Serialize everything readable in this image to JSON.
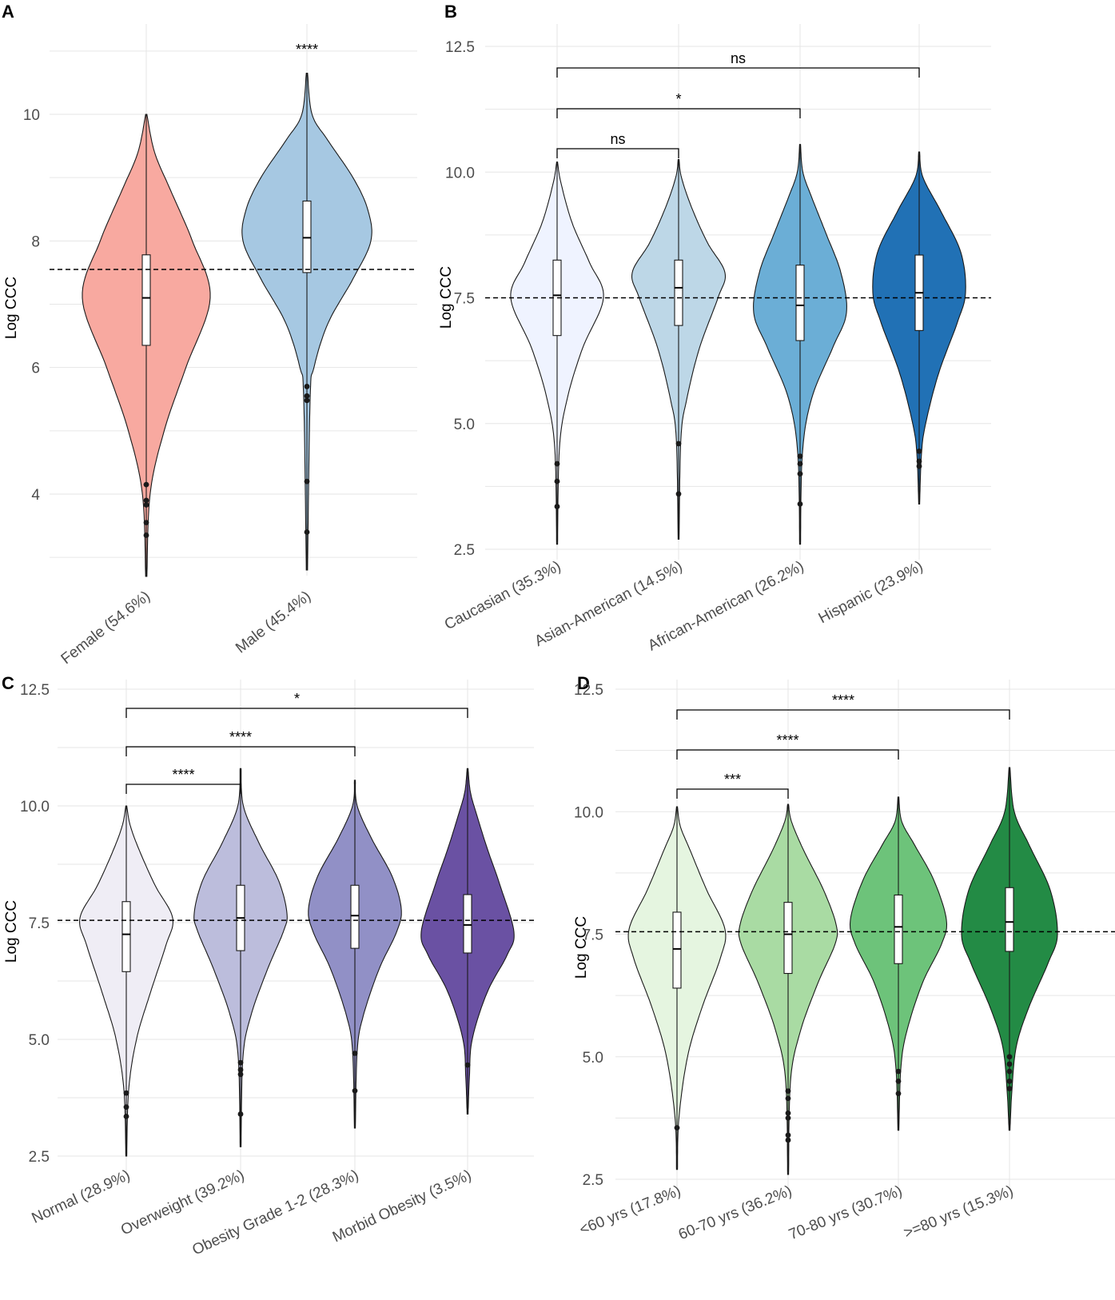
{
  "chart_data": [
    {
      "panel": "A",
      "type": "violin",
      "ylabel": "Log CCC",
      "ylim": [
        2.8,
        11.0
      ],
      "yticks": [
        4,
        6,
        8,
        10
      ],
      "yminor": [
        3,
        5,
        7,
        9,
        11
      ],
      "yticklabels": [
        "4",
        "6",
        "8",
        "10"
      ],
      "reference_line": 7.55,
      "categories": [
        "Female (54.6%)",
        "Male (45.4%)"
      ],
      "colors": [
        "#f8a9a0",
        "#a6c8e2"
      ],
      "groups": [
        {
          "median": 7.1,
          "q1": 6.35,
          "q3": 7.78,
          "wlo": 4.2,
          "whi": 9.4,
          "min": 2.7,
          "max": 10.0,
          "outliers": [
            4.15,
            3.9,
            3.83,
            3.55,
            3.35
          ],
          "shape": [
            [
              2.7,
              0.01
            ],
            [
              4.0,
              0.06
            ],
            [
              5.0,
              0.28
            ],
            [
              6.0,
              0.62
            ],
            [
              7.1,
              1.0
            ],
            [
              8.0,
              0.72
            ],
            [
              8.8,
              0.38
            ],
            [
              9.4,
              0.13
            ],
            [
              10.0,
              0.01
            ]
          ]
        },
        {
          "median": 8.05,
          "q1": 7.5,
          "q3": 8.63,
          "wlo": 5.65,
          "whi": 10.0,
          "min": 2.8,
          "max": 10.65,
          "outliers": [
            5.7,
            5.55,
            5.48,
            4.2,
            3.4
          ],
          "shape": [
            [
              2.8,
              0.01
            ],
            [
              5.5,
              0.05
            ],
            [
              6.0,
              0.11
            ],
            [
              6.7,
              0.33
            ],
            [
              7.4,
              0.72
            ],
            [
              8.0,
              1.0
            ],
            [
              8.5,
              0.95
            ],
            [
              9.0,
              0.72
            ],
            [
              9.6,
              0.32
            ],
            [
              10.0,
              0.08
            ],
            [
              10.65,
              0.01
            ]
          ]
        }
      ],
      "significance": [
        {
          "text": "****",
          "from": 1,
          "to": 1
        }
      ]
    },
    {
      "panel": "B",
      "type": "violin",
      "ylabel": "Log CCC",
      "ylim": [
        2.0,
        13.0
      ],
      "yticks": [
        2.5,
        5.0,
        7.5,
        10.0,
        12.5
      ],
      "yminor": [
        3.75,
        6.25,
        8.75,
        11.25
      ],
      "yticklabels": [
        "2.5",
        "5.0",
        "7.5",
        "10.0",
        "12.5"
      ],
      "reference_line": 7.5,
      "categories": [
        "Caucasian (35.3%)",
        "Asian-American (14.5%)",
        "African-American (26.2%)",
        "Hispanic (23.9%)"
      ],
      "colors": [
        "#eff3ff",
        "#bdd7e7",
        "#6baed6",
        "#2171b5"
      ],
      "groups": [
        {
          "median": 7.55,
          "q1": 6.75,
          "q3": 8.25,
          "wlo": 4.3,
          "whi": 9.8,
          "min": 2.6,
          "max": 10.2,
          "outliers": [
            4.2,
            3.85,
            3.35
          ],
          "shape": [
            [
              2.6,
              0.01
            ],
            [
              4.5,
              0.05
            ],
            [
              5.5,
              0.22
            ],
            [
              6.5,
              0.55
            ],
            [
              7.5,
              1.0
            ],
            [
              8.2,
              0.7
            ],
            [
              9.0,
              0.32
            ],
            [
              9.8,
              0.08
            ],
            [
              10.2,
              0.01
            ]
          ]
        },
        {
          "median": 7.7,
          "q1": 6.95,
          "q3": 8.25,
          "wlo": 4.7,
          "whi": 9.9,
          "min": 2.7,
          "max": 10.25,
          "outliers": [
            4.6,
            3.6
          ],
          "shape": [
            [
              2.7,
              0.01
            ],
            [
              4.7,
              0.05
            ],
            [
              5.5,
              0.18
            ],
            [
              6.5,
              0.45
            ],
            [
              7.5,
              0.85
            ],
            [
              8.0,
              1.0
            ],
            [
              8.6,
              0.62
            ],
            [
              9.3,
              0.28
            ],
            [
              9.9,
              0.06
            ],
            [
              10.25,
              0.01
            ]
          ]
        },
        {
          "median": 7.35,
          "q1": 6.65,
          "q3": 8.15,
          "wlo": 4.4,
          "whi": 10.0,
          "min": 2.6,
          "max": 10.55,
          "outliers": [
            4.35,
            4.2,
            4.0,
            3.4
          ],
          "shape": [
            [
              2.6,
              0.01
            ],
            [
              4.4,
              0.05
            ],
            [
              5.5,
              0.25
            ],
            [
              6.5,
              0.7
            ],
            [
              7.2,
              1.0
            ],
            [
              8.0,
              0.88
            ],
            [
              8.8,
              0.55
            ],
            [
              9.5,
              0.25
            ],
            [
              10.0,
              0.06
            ],
            [
              10.55,
              0.01
            ]
          ]
        },
        {
          "median": 7.6,
          "q1": 6.85,
          "q3": 8.35,
          "wlo": 4.4,
          "whi": 9.9,
          "min": 3.4,
          "max": 10.4,
          "outliers": [
            4.45,
            4.25,
            4.15
          ],
          "shape": [
            [
              3.4,
              0.01
            ],
            [
              4.4,
              0.05
            ],
            [
              5.0,
              0.14
            ],
            [
              6.0,
              0.42
            ],
            [
              7.0,
              0.82
            ],
            [
              7.6,
              1.0
            ],
            [
              8.4,
              0.9
            ],
            [
              9.2,
              0.48
            ],
            [
              9.9,
              0.08
            ],
            [
              10.4,
              0.01
            ]
          ]
        }
      ],
      "significance": [
        {
          "text": "ns",
          "from": 0,
          "to": 1
        },
        {
          "text": "*",
          "from": 0,
          "to": 2
        },
        {
          "text": "ns",
          "from": 0,
          "to": 3
        }
      ]
    },
    {
      "panel": "C",
      "type": "violin",
      "ylabel": "Log CCC",
      "ylim": [
        2.0,
        12.8
      ],
      "yticks": [
        2.5,
        5.0,
        7.5,
        10.0,
        12.5
      ],
      "yminor": [
        3.75,
        6.25,
        8.75,
        11.25
      ],
      "yticklabels": [
        "2.5",
        "5.0",
        "7.5",
        "10.0",
        "12.5"
      ],
      "reference_line": 7.55,
      "categories": [
        "Normal (28.9%)",
        "Overweight (39.2%)",
        "Obesity Grade 1-2 (28.3%)",
        "Morbid Obesity (3.5%)"
      ],
      "colors": [
        "#efedf5",
        "#bcbddc",
        "#9190c6",
        "#6a51a3"
      ],
      "groups": [
        {
          "median": 7.25,
          "q1": 6.45,
          "q3": 7.95,
          "wlo": 3.9,
          "whi": 9.6,
          "min": 2.5,
          "max": 10.0,
          "outliers": [
            3.85,
            3.55,
            3.35
          ],
          "shape": [
            [
              2.5,
              0.01
            ],
            [
              3.9,
              0.05
            ],
            [
              5.0,
              0.22
            ],
            [
              6.0,
              0.52
            ],
            [
              7.0,
              0.85
            ],
            [
              7.6,
              1.0
            ],
            [
              8.3,
              0.62
            ],
            [
              9.1,
              0.26
            ],
            [
              9.6,
              0.08
            ],
            [
              10.0,
              0.01
            ]
          ]
        },
        {
          "median": 7.6,
          "q1": 6.9,
          "q3": 8.3,
          "wlo": 4.6,
          "whi": 10.0,
          "min": 2.7,
          "max": 10.8,
          "outliers": [
            4.5,
            4.35,
            4.25,
            3.4
          ],
          "shape": [
            [
              2.7,
              0.01
            ],
            [
              4.6,
              0.05
            ],
            [
              5.5,
              0.22
            ],
            [
              6.5,
              0.58
            ],
            [
              7.3,
              0.92
            ],
            [
              7.7,
              1.0
            ],
            [
              8.4,
              0.82
            ],
            [
              9.2,
              0.4
            ],
            [
              10.0,
              0.06
            ],
            [
              10.8,
              0.01
            ]
          ]
        },
        {
          "median": 7.65,
          "q1": 6.95,
          "q3": 8.3,
          "wlo": 4.75,
          "whi": 10.0,
          "min": 3.1,
          "max": 10.55,
          "outliers": [
            4.7,
            3.9
          ],
          "shape": [
            [
              3.1,
              0.01
            ],
            [
              4.75,
              0.05
            ],
            [
              5.5,
              0.18
            ],
            [
              6.5,
              0.52
            ],
            [
              7.3,
              0.9
            ],
            [
              7.8,
              1.0
            ],
            [
              8.5,
              0.8
            ],
            [
              9.3,
              0.36
            ],
            [
              10.0,
              0.05
            ],
            [
              10.55,
              0.01
            ]
          ]
        },
        {
          "median": 7.45,
          "q1": 6.85,
          "q3": 8.1,
          "wlo": 4.5,
          "whi": 10.0,
          "min": 3.4,
          "max": 10.8,
          "outliers": [
            4.45
          ],
          "shape": [
            [
              3.4,
              0.01
            ],
            [
              4.2,
              0.04
            ],
            [
              5.0,
              0.1
            ],
            [
              6.0,
              0.42
            ],
            [
              6.8,
              0.85
            ],
            [
              7.3,
              1.0
            ],
            [
              8.3,
              0.7
            ],
            [
              9.1,
              0.42
            ],
            [
              9.8,
              0.2
            ],
            [
              10.3,
              0.06
            ],
            [
              10.8,
              0.01
            ]
          ]
        }
      ],
      "significance": [
        {
          "text": "****",
          "from": 0,
          "to": 1
        },
        {
          "text": "****",
          "from": 0,
          "to": 2
        },
        {
          "text": "*",
          "from": 0,
          "to": 3
        }
      ]
    },
    {
      "panel": "D",
      "type": "violin",
      "ylabel": "Log CCC",
      "ylim": [
        2.0,
        12.8
      ],
      "yticks": [
        2.5,
        5.0,
        7.5,
        10.0,
        12.5
      ],
      "yminor": [
        3.75,
        6.25,
        8.75,
        11.25
      ],
      "yticklabels": [
        "2.5",
        "5.0",
        "7.5",
        "10.0",
        "12.5"
      ],
      "reference_line": 7.55,
      "categories": [
        "<60 yrs (17.8%)",
        "60-70 yrs (36.2%)",
        "70-80 yrs (30.7%)",
        ">=80 yrs (15.3%)"
      ],
      "colors": [
        "#e5f5e0",
        "#a9dba3",
        "#6dc37a",
        "#238b45"
      ],
      "groups": [
        {
          "median": 7.2,
          "q1": 6.4,
          "q3": 7.95,
          "wlo": 3.75,
          "whi": 9.7,
          "min": 2.7,
          "max": 10.1,
          "outliers": [
            3.55
          ],
          "shape": [
            [
              2.7,
              0.01
            ],
            [
              3.75,
              0.04
            ],
            [
              5.0,
              0.22
            ],
            [
              6.0,
              0.52
            ],
            [
              7.0,
              0.9
            ],
            [
              7.6,
              1.0
            ],
            [
              8.4,
              0.62
            ],
            [
              9.2,
              0.28
            ],
            [
              9.7,
              0.07
            ],
            [
              10.1,
              0.01
            ]
          ]
        },
        {
          "median": 7.5,
          "q1": 6.7,
          "q3": 8.15,
          "wlo": 4.5,
          "whi": 9.8,
          "min": 2.6,
          "max": 10.15,
          "outliers": [
            4.3,
            4.15,
            3.85,
            3.75,
            3.4,
            3.3
          ],
          "shape": [
            [
              2.6,
              0.01
            ],
            [
              4.5,
              0.05
            ],
            [
              5.5,
              0.25
            ],
            [
              6.5,
              0.62
            ],
            [
              7.3,
              0.98
            ],
            [
              7.7,
              1.0
            ],
            [
              8.4,
              0.74
            ],
            [
              9.2,
              0.33
            ],
            [
              9.8,
              0.07
            ],
            [
              10.15,
              0.01
            ]
          ]
        },
        {
          "median": 7.65,
          "q1": 6.9,
          "q3": 8.3,
          "wlo": 4.75,
          "whi": 9.8,
          "min": 3.5,
          "max": 10.3,
          "outliers": [
            4.7,
            4.5,
            4.25
          ],
          "shape": [
            [
              3.5,
              0.01
            ],
            [
              4.75,
              0.05
            ],
            [
              5.5,
              0.17
            ],
            [
              6.5,
              0.5
            ],
            [
              7.3,
              0.9
            ],
            [
              7.8,
              1.0
            ],
            [
              8.6,
              0.74
            ],
            [
              9.3,
              0.35
            ],
            [
              9.8,
              0.07
            ],
            [
              10.3,
              0.01
            ]
          ]
        },
        {
          "median": 7.75,
          "q1": 7.15,
          "q3": 8.45,
          "wlo": 5.0,
          "whi": 10.0,
          "min": 3.5,
          "max": 10.9,
          "outliers": [
            5.0,
            4.85,
            4.7,
            4.5,
            4.35
          ],
          "shape": [
            [
              3.5,
              0.01
            ],
            [
              4.3,
              0.05
            ],
            [
              5.2,
              0.14
            ],
            [
              6.0,
              0.4
            ],
            [
              6.9,
              0.8
            ],
            [
              7.5,
              1.0
            ],
            [
              8.4,
              0.85
            ],
            [
              9.3,
              0.42
            ],
            [
              10.0,
              0.1
            ],
            [
              10.9,
              0.01
            ]
          ]
        }
      ],
      "significance": [
        {
          "text": "***",
          "from": 0,
          "to": 1
        },
        {
          "text": "****",
          "from": 0,
          "to": 2
        },
        {
          "text": "****",
          "from": 0,
          "to": 3
        }
      ]
    }
  ]
}
